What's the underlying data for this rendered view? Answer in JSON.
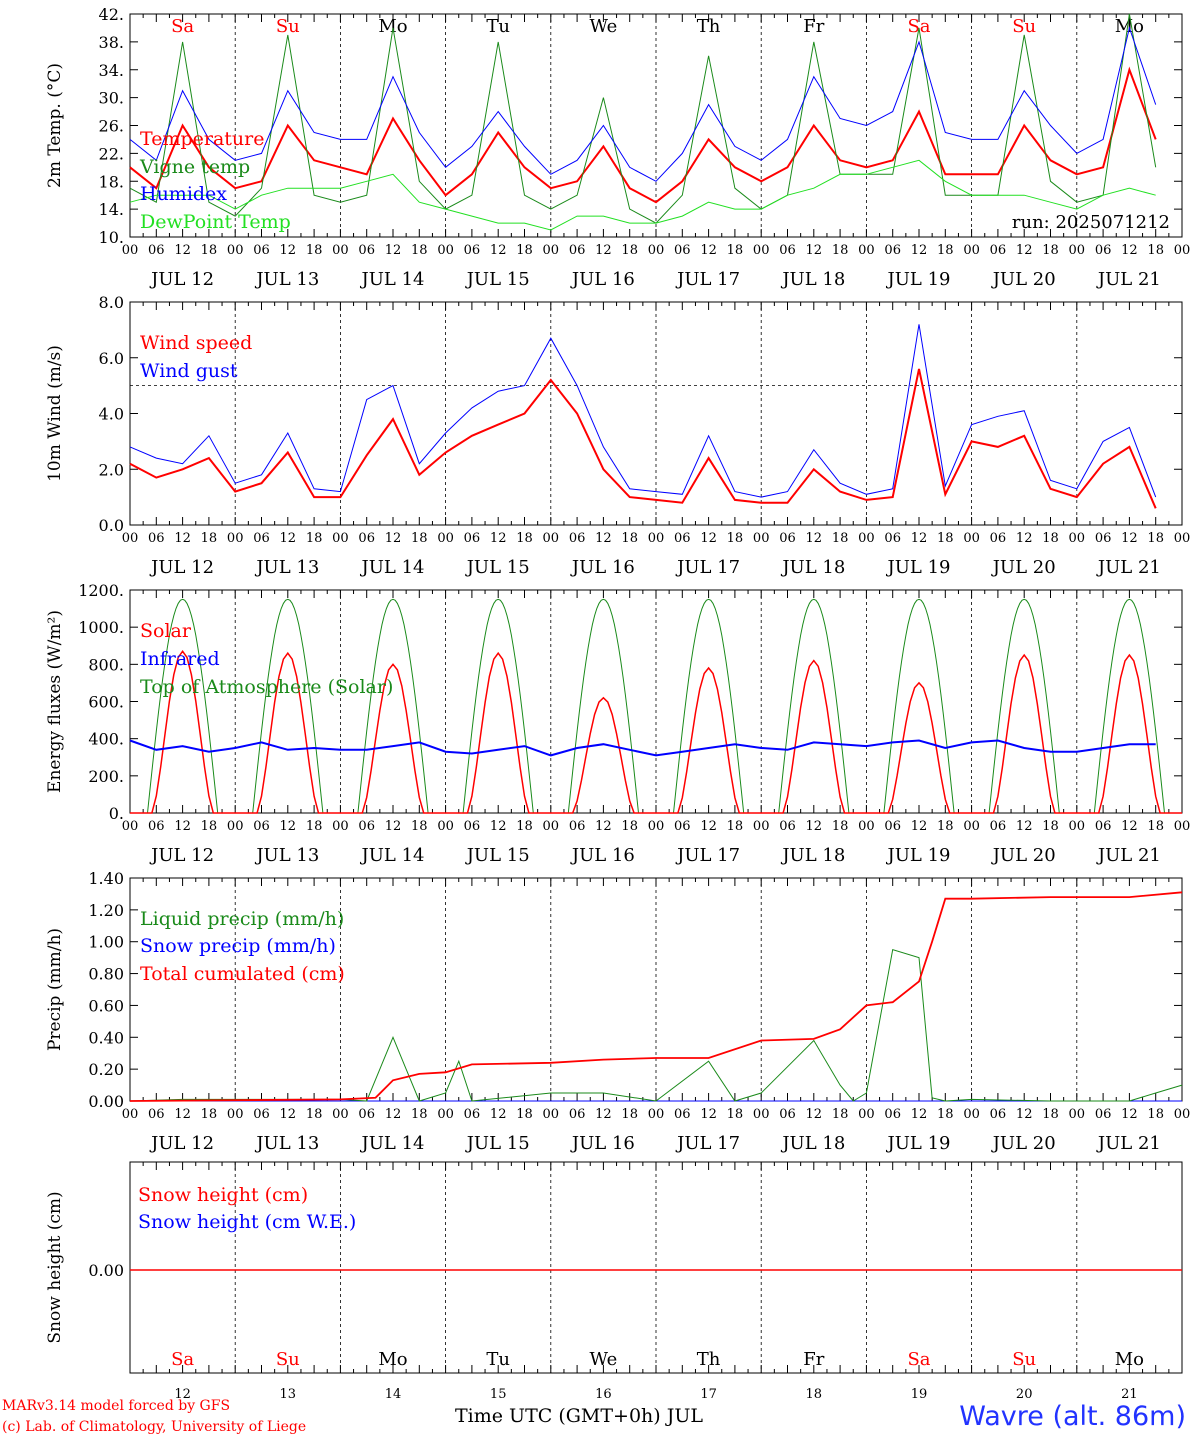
{
  "colors": {
    "red": "#ff0000",
    "blue": "#0000ff",
    "green": "#1a8a1a",
    "lightgreen": "#22e022",
    "black": "#000000",
    "station": "#2233ff"
  },
  "days": [
    "JUL 12",
    "JUL 13",
    "JUL 14",
    "JUL 15",
    "JUL 16",
    "JUL 17",
    "JUL 18",
    "JUL 19",
    "JUL 20",
    "JUL 21"
  ],
  "day_numbers": [
    "12",
    "13",
    "14",
    "15",
    "16",
    "17",
    "18",
    "19",
    "20",
    "21"
  ],
  "weekdays": [
    {
      "label": "Sa",
      "color": "red"
    },
    {
      "label": "Su",
      "color": "red"
    },
    {
      "label": "Mo",
      "color": "black"
    },
    {
      "label": "Tu",
      "color": "black"
    },
    {
      "label": "We",
      "color": "black"
    },
    {
      "label": "Th",
      "color": "black"
    },
    {
      "label": "Fr",
      "color": "black"
    },
    {
      "label": "Sa",
      "color": "red"
    },
    {
      "label": "Su",
      "color": "red"
    },
    {
      "label": "Mo",
      "color": "black"
    }
  ],
  "hour_ticks": [
    "00",
    "06",
    "12",
    "18"
  ],
  "last_hour_tick": "00",
  "footer": {
    "model": "MARv3.14 model forced by GFS",
    "credit": "(c) Lab. of Climatology, University of Liege",
    "xlabel": "Time UTC (GMT+0h) JUL",
    "station": "Wavre (alt. 86m)"
  },
  "chart_data": [
    {
      "type": "line",
      "ylabel": "2m Temp. (°C)",
      "ylim": [
        10,
        42
      ],
      "yticks": [
        "10.",
        "14.",
        "18.",
        "22.",
        "26.",
        "30.",
        "34.",
        "38.",
        "42."
      ],
      "annotation": "run: 2025071212",
      "series": [
        {
          "name": "Temperature",
          "color": "red",
          "x_hours": [
            0,
            6,
            12,
            18,
            24,
            30,
            36,
            42,
            48,
            54,
            60,
            66,
            72,
            78,
            84,
            90,
            96,
            102,
            108,
            114,
            120,
            126,
            132,
            138,
            144,
            150,
            156,
            162,
            168,
            174,
            180,
            186,
            192,
            198,
            204,
            210,
            216,
            222,
            228,
            234
          ],
          "values": [
            20,
            17,
            26,
            20,
            17,
            18,
            26,
            21,
            20,
            19,
            27,
            21,
            16,
            19,
            25,
            20,
            17,
            18,
            23,
            17,
            15,
            18,
            24,
            20,
            18,
            20,
            26,
            21,
            20,
            21,
            28,
            19,
            19,
            19,
            26,
            21,
            19,
            20,
            34,
            24
          ]
        },
        {
          "name": "Vigne temp",
          "color": "green",
          "x_hours": [
            0,
            6,
            12,
            18,
            24,
            30,
            36,
            42,
            48,
            54,
            60,
            66,
            72,
            78,
            84,
            90,
            96,
            102,
            108,
            114,
            120,
            126,
            132,
            138,
            144,
            150,
            156,
            162,
            168,
            174,
            180,
            186,
            192,
            198,
            204,
            210,
            216,
            222,
            228,
            234
          ],
          "values": [
            17,
            15,
            38,
            15,
            13,
            17,
            39,
            16,
            15,
            16,
            40,
            18,
            14,
            16,
            38,
            16,
            14,
            16,
            30,
            14,
            12,
            16,
            36,
            17,
            14,
            16,
            38,
            19,
            19,
            19,
            40,
            16,
            16,
            16,
            39,
            18,
            15,
            16,
            44,
            20
          ]
        },
        {
          "name": "Humidex",
          "color": "blue",
          "x_hours": [
            0,
            6,
            12,
            18,
            24,
            30,
            36,
            42,
            48,
            54,
            60,
            66,
            72,
            78,
            84,
            90,
            96,
            102,
            108,
            114,
            120,
            126,
            132,
            138,
            144,
            150,
            156,
            162,
            168,
            174,
            180,
            186,
            192,
            198,
            204,
            210,
            216,
            222,
            228,
            234
          ],
          "values": [
            24,
            21,
            31,
            24,
            21,
            22,
            31,
            25,
            24,
            24,
            33,
            25,
            20,
            23,
            28,
            23,
            19,
            21,
            26,
            20,
            18,
            22,
            29,
            23,
            21,
            24,
            33,
            27,
            26,
            28,
            38,
            25,
            24,
            24,
            31,
            26,
            22,
            24,
            40,
            29
          ]
        },
        {
          "name": "DewPoint Temp",
          "color": "lightgreen",
          "x_hours": [
            0,
            6,
            12,
            18,
            24,
            30,
            36,
            42,
            48,
            54,
            60,
            66,
            72,
            78,
            84,
            90,
            96,
            102,
            108,
            114,
            120,
            126,
            132,
            138,
            144,
            150,
            156,
            162,
            168,
            174,
            180,
            186,
            192,
            198,
            204,
            210,
            216,
            222,
            228,
            234
          ],
          "values": [
            15,
            16,
            16,
            16,
            14,
            16,
            17,
            17,
            17,
            18,
            19,
            15,
            14,
            13,
            12,
            12,
            11,
            13,
            13,
            12,
            12,
            13,
            15,
            14,
            14,
            16,
            17,
            19,
            19,
            20,
            21,
            18,
            16,
            16,
            16,
            15,
            14,
            16,
            17,
            16
          ]
        }
      ]
    },
    {
      "type": "line",
      "ylabel": "10m Wind (m/s)",
      "ylim": [
        0,
        8
      ],
      "yticks": [
        "0.0",
        "2.0",
        "4.0",
        "6.0",
        "8.0"
      ],
      "reference_line": 5,
      "series": [
        {
          "name": "Wind speed",
          "color": "red",
          "x_hours": [
            0,
            6,
            12,
            18,
            24,
            30,
            36,
            42,
            48,
            54,
            60,
            66,
            72,
            78,
            84,
            90,
            96,
            102,
            108,
            114,
            120,
            126,
            132,
            138,
            144,
            150,
            156,
            162,
            168,
            174,
            180,
            186,
            192,
            198,
            204,
            210,
            216,
            222,
            228,
            234
          ],
          "values": [
            2.2,
            1.7,
            2.0,
            2.4,
            1.2,
            1.5,
            2.6,
            1.0,
            1.0,
            2.5,
            3.8,
            1.8,
            2.6,
            3.2,
            3.6,
            4.0,
            5.2,
            4.0,
            2.0,
            1.0,
            0.9,
            0.8,
            2.4,
            0.9,
            0.8,
            0.8,
            2.0,
            1.2,
            0.9,
            1.0,
            5.6,
            1.1,
            3.0,
            2.8,
            3.2,
            1.3,
            1.0,
            2.2,
            2.8,
            0.6
          ]
        },
        {
          "name": "Wind gust",
          "color": "blue",
          "x_hours": [
            0,
            6,
            12,
            18,
            24,
            30,
            36,
            42,
            48,
            54,
            60,
            66,
            72,
            78,
            84,
            90,
            96,
            102,
            108,
            114,
            120,
            126,
            132,
            138,
            144,
            150,
            156,
            162,
            168,
            174,
            180,
            186,
            192,
            198,
            204,
            210,
            216,
            222,
            228,
            234
          ],
          "values": [
            2.8,
            2.4,
            2.2,
            3.2,
            1.5,
            1.8,
            3.3,
            1.3,
            1.2,
            4.5,
            5.0,
            2.2,
            3.3,
            4.2,
            4.8,
            5.0,
            6.7,
            5.0,
            2.8,
            1.3,
            1.2,
            1.1,
            3.2,
            1.2,
            1.0,
            1.2,
            2.7,
            1.5,
            1.1,
            1.3,
            7.2,
            1.4,
            3.6,
            3.9,
            4.1,
            1.6,
            1.3,
            3.0,
            3.5,
            1.0
          ]
        }
      ]
    },
    {
      "type": "line",
      "ylabel": "Energy fluxes (W/m²)",
      "ylim": [
        0,
        1200
      ],
      "yticks": [
        "0.",
        "200.",
        "400.",
        "600.",
        "800.",
        "1000.",
        "1200."
      ],
      "series": [
        {
          "name": "Solar",
          "color": "red",
          "peaks": [
            870,
            860,
            800,
            860,
            620,
            780,
            820,
            700,
            850,
            850
          ]
        },
        {
          "name": "Infrared",
          "color": "blue",
          "x_hours": [
            0,
            6,
            12,
            18,
            24,
            30,
            36,
            42,
            48,
            54,
            60,
            66,
            72,
            78,
            84,
            90,
            96,
            102,
            108,
            114,
            120,
            126,
            132,
            138,
            144,
            150,
            156,
            162,
            168,
            174,
            180,
            186,
            192,
            198,
            204,
            210,
            216,
            222,
            228,
            234
          ],
          "values": [
            390,
            340,
            360,
            330,
            350,
            380,
            340,
            350,
            340,
            340,
            360,
            380,
            330,
            320,
            340,
            360,
            310,
            350,
            370,
            340,
            310,
            330,
            350,
            370,
            350,
            340,
            380,
            370,
            360,
            380,
            390,
            350,
            380,
            390,
            350,
            330,
            330,
            350,
            370,
            370
          ]
        },
        {
          "name": "Top of Atmosphere (Solar)",
          "color": "green",
          "peak": 1150
        }
      ]
    },
    {
      "type": "line",
      "ylabel": "Precip (mm/h)",
      "ylim": [
        0,
        1.4
      ],
      "yticks": [
        "0.00",
        "0.20",
        "0.40",
        "0.60",
        "0.80",
        "1.00",
        "1.20",
        "1.40"
      ],
      "series": [
        {
          "name": "Liquid precip (mm/h)",
          "color": "green",
          "x_hours": [
            0,
            12,
            24,
            36,
            48,
            54,
            60,
            63,
            66,
            72,
            75,
            78,
            96,
            108,
            120,
            132,
            138,
            144,
            156,
            162,
            165,
            168,
            174,
            180,
            183,
            186,
            192,
            210,
            228,
            234,
            240
          ],
          "values": [
            0,
            0.01,
            0.01,
            0.01,
            0.01,
            0,
            0.4,
            0.2,
            0,
            0.05,
            0.25,
            0,
            0.05,
            0.05,
            0,
            0.25,
            0,
            0.05,
            0.38,
            0.1,
            0,
            0.05,
            0.95,
            0.9,
            0.02,
            0,
            0.01,
            0,
            0,
            0.05,
            0.1
          ]
        },
        {
          "name": "Snow precip (mm/h)",
          "color": "blue",
          "x_hours": [
            0,
            240
          ],
          "values": [
            0,
            0
          ]
        },
        {
          "name": "Total cumulated (cm)",
          "color": "red",
          "x_hours": [
            0,
            48,
            56,
            60,
            66,
            72,
            78,
            96,
            108,
            120,
            132,
            144,
            156,
            162,
            168,
            174,
            180,
            183,
            186,
            192,
            210,
            228,
            240
          ],
          "values": [
            0,
            0.01,
            0.02,
            0.13,
            0.17,
            0.18,
            0.23,
            0.24,
            0.26,
            0.27,
            0.27,
            0.38,
            0.39,
            0.45,
            0.6,
            0.62,
            0.75,
            1.0,
            1.27,
            1.27,
            1.28,
            1.28,
            1.31
          ]
        }
      ]
    },
    {
      "type": "line",
      "ylabel": "Snow height (cm)",
      "ytick_label": "0.00",
      "series": [
        {
          "name": "Snow height (cm)",
          "color": "red",
          "values": [
            0,
            0
          ]
        },
        {
          "name": "Snow height (cm W.E.)",
          "color": "blue",
          "values": [
            0,
            0
          ]
        }
      ]
    }
  ]
}
